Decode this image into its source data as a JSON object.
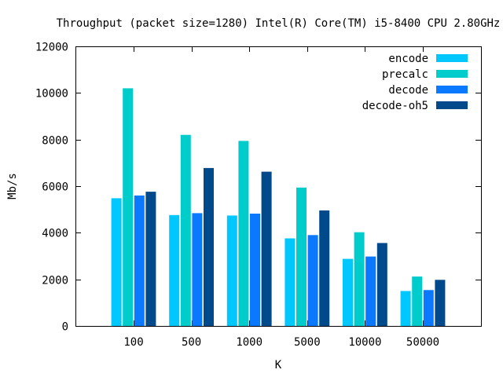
{
  "chart_data": {
    "type": "bar",
    "title": "Throughput (packet size=1280) Intel(R) Core(TM) i5-8400 CPU 2.80GHz",
    "xlabel": "K",
    "ylabel": "Mb/s",
    "categories": [
      "100",
      "500",
      "1000",
      "5000",
      "10000",
      "50000"
    ],
    "ylim": [
      0,
      12000
    ],
    "yticks": [
      0,
      2000,
      4000,
      6000,
      8000,
      10000,
      12000
    ],
    "ytick_labels": [
      "0",
      "2000",
      "4000",
      "6000",
      "8000",
      "10000",
      "12000"
    ],
    "grid": false,
    "legend_position": "top-right",
    "series": [
      {
        "name": "encode",
        "color": "#00c8ff",
        "values": [
          5480,
          4760,
          4740,
          3760,
          2880,
          1500
        ]
      },
      {
        "name": "precalc",
        "color": "#00cccc",
        "values": [
          10200,
          8200,
          7940,
          5940,
          4020,
          2120
        ]
      },
      {
        "name": "decode",
        "color": "#0a78ff",
        "values": [
          5600,
          4840,
          4820,
          3900,
          2980,
          1540
        ]
      },
      {
        "name": "decode-oh5",
        "color": "#004a8c",
        "values": [
          5760,
          6780,
          6620,
          4960,
          3560,
          1980
        ]
      }
    ]
  }
}
